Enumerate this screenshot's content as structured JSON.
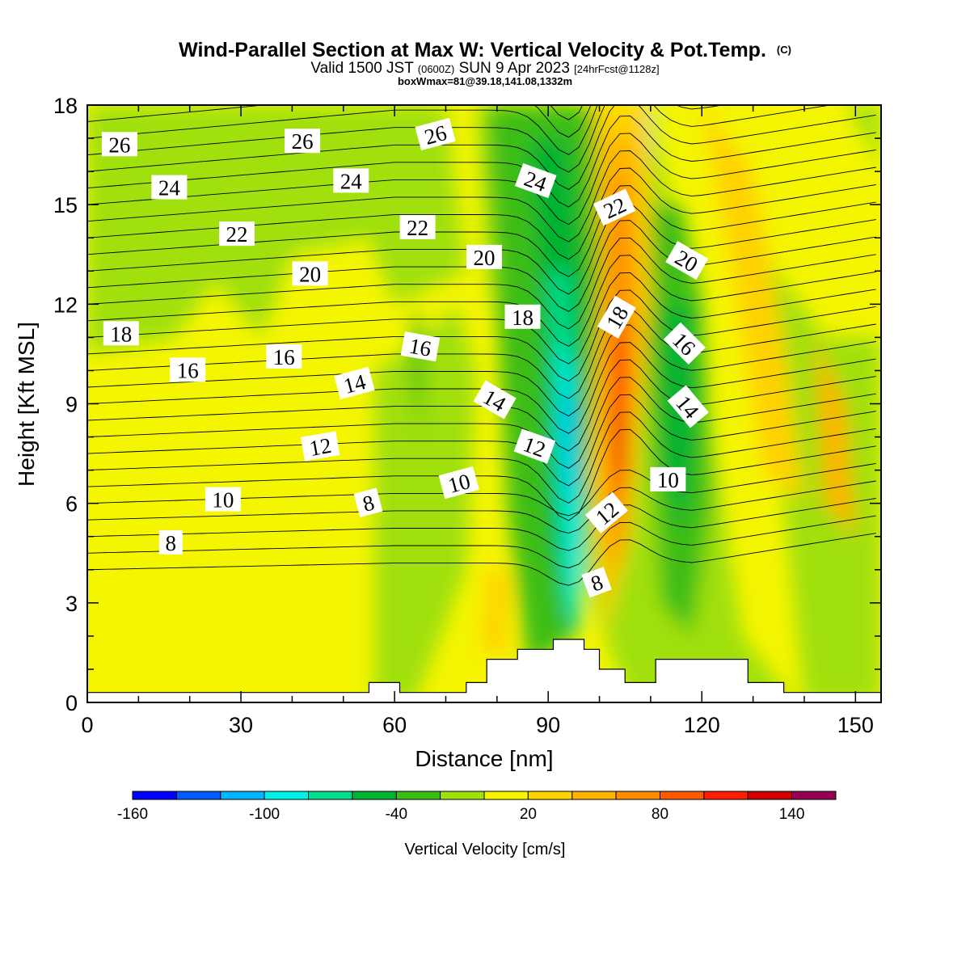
{
  "title": {
    "main": "Wind-Parallel Section at Max W: Vertical Velocity & Pot.Temp.",
    "copyright": "(C)",
    "valid_prefix": "Valid 1500 JST",
    "valid_z": "(0600Z)",
    "valid_date": "SUN 9 Apr 2023",
    "forecast": "[24hrFcst@1128z]",
    "box": "boxWmax=81@39.18,141.08,1332m"
  },
  "chart_data": {
    "type": "heatmap",
    "xlabel": "Distance [nm]",
    "ylabel": "Height [Kft MSL]",
    "xlim": [
      0,
      155
    ],
    "ylim": [
      0,
      18
    ],
    "x_ticks": [
      "0",
      "30",
      "60",
      "90",
      "120",
      "150"
    ],
    "y_ticks": [
      "0",
      "3",
      "6",
      "9",
      "12",
      "15",
      "18"
    ],
    "colorbar": {
      "title": "Vertical Velocity [cm/s]",
      "levels": [
        -160,
        -140,
        -120,
        -100,
        -80,
        -60,
        -40,
        -20,
        0,
        20,
        40,
        60,
        80,
        100,
        120,
        140,
        160
      ],
      "tick_labels": [
        "-160",
        "-100",
        "-40",
        "20",
        "80",
        "140"
      ],
      "colors": [
        "#0000ff",
        "#005aff",
        "#00b4ff",
        "#00f0e8",
        "#00dc8c",
        "#00b432",
        "#3cbe14",
        "#a0e00a",
        "#f5f500",
        "#ffd200",
        "#ffb400",
        "#ff8c00",
        "#ff5a00",
        "#ff1e00",
        "#d20000",
        "#960050",
        "#5a0096"
      ]
    },
    "terrain": {
      "x": [
        0,
        55,
        55,
        61,
        61,
        74,
        74,
        78,
        78,
        84,
        84,
        91,
        91,
        97,
        97,
        100,
        100,
        105,
        105,
        111,
        111,
        129,
        129,
        136,
        136,
        155
      ],
      "z": [
        0.3,
        0.3,
        0.6,
        0.6,
        0.3,
        0.3,
        0.6,
        0.6,
        1.3,
        1.3,
        1.6,
        1.6,
        1.9,
        1.9,
        1.6,
        1.6,
        1.0,
        1.0,
        0.6,
        0.6,
        1.3,
        1.3,
        0.6,
        0.6,
        0.3,
        0.3
      ]
    },
    "theta_labels": [
      {
        "text": "26",
        "x": 6.3,
        "z": 16.8,
        "angle": 0
      },
      {
        "text": "26",
        "x": 42,
        "z": 16.9,
        "angle": 0
      },
      {
        "text": "26",
        "x": 68,
        "z": 17.1,
        "angle": -15
      },
      {
        "text": "24",
        "x": 16,
        "z": 15.5,
        "angle": 0
      },
      {
        "text": "24",
        "x": 51.5,
        "z": 15.7,
        "angle": 0
      },
      {
        "text": "24",
        "x": 87.5,
        "z": 15.7,
        "angle": 20
      },
      {
        "text": "22",
        "x": 29.2,
        "z": 14.1,
        "angle": 0
      },
      {
        "text": "22",
        "x": 64.5,
        "z": 14.3,
        "angle": 0
      },
      {
        "text": "22",
        "x": 103,
        "z": 14.9,
        "angle": -25
      },
      {
        "text": "20",
        "x": 43.5,
        "z": 12.9,
        "angle": 0
      },
      {
        "text": "20",
        "x": 77.5,
        "z": 13.4,
        "angle": 0
      },
      {
        "text": "20",
        "x": 117,
        "z": 13.3,
        "angle": 30
      },
      {
        "text": "18",
        "x": 6.6,
        "z": 11.1,
        "angle": 0
      },
      {
        "text": "18",
        "x": 85,
        "z": 11.6,
        "angle": 0
      },
      {
        "text": "18",
        "x": 103.5,
        "z": 11.6,
        "angle": -60
      },
      {
        "text": "16",
        "x": 19.6,
        "z": 10.0,
        "angle": 0
      },
      {
        "text": "16",
        "x": 38.4,
        "z": 10.4,
        "angle": 0
      },
      {
        "text": "16",
        "x": 65,
        "z": 10.7,
        "angle": 10
      },
      {
        "text": "16",
        "x": 116.5,
        "z": 10.8,
        "angle": 45
      },
      {
        "text": "14",
        "x": 52.2,
        "z": 9.6,
        "angle": -15
      },
      {
        "text": "14",
        "x": 79.5,
        "z": 9.1,
        "angle": 30
      },
      {
        "text": "14",
        "x": 117.2,
        "z": 8.9,
        "angle": 50
      },
      {
        "text": "12",
        "x": 45.5,
        "z": 7.7,
        "angle": -10
      },
      {
        "text": "12",
        "x": 87.3,
        "z": 7.7,
        "angle": 20
      },
      {
        "text": "12",
        "x": 101.5,
        "z": 5.7,
        "angle": -40
      },
      {
        "text": "10",
        "x": 26.5,
        "z": 6.1,
        "angle": 0
      },
      {
        "text": "10",
        "x": 72.6,
        "z": 6.6,
        "angle": -15
      },
      {
        "text": "10",
        "x": 113.4,
        "z": 6.7,
        "angle": 0
      },
      {
        "text": "8",
        "x": 16.3,
        "z": 4.8,
        "angle": 0
      },
      {
        "text": "8",
        "x": 54.9,
        "z": 6.0,
        "angle": -15
      },
      {
        "text": "8",
        "x": 99.5,
        "z": 3.6,
        "angle": -20
      }
    ]
  }
}
